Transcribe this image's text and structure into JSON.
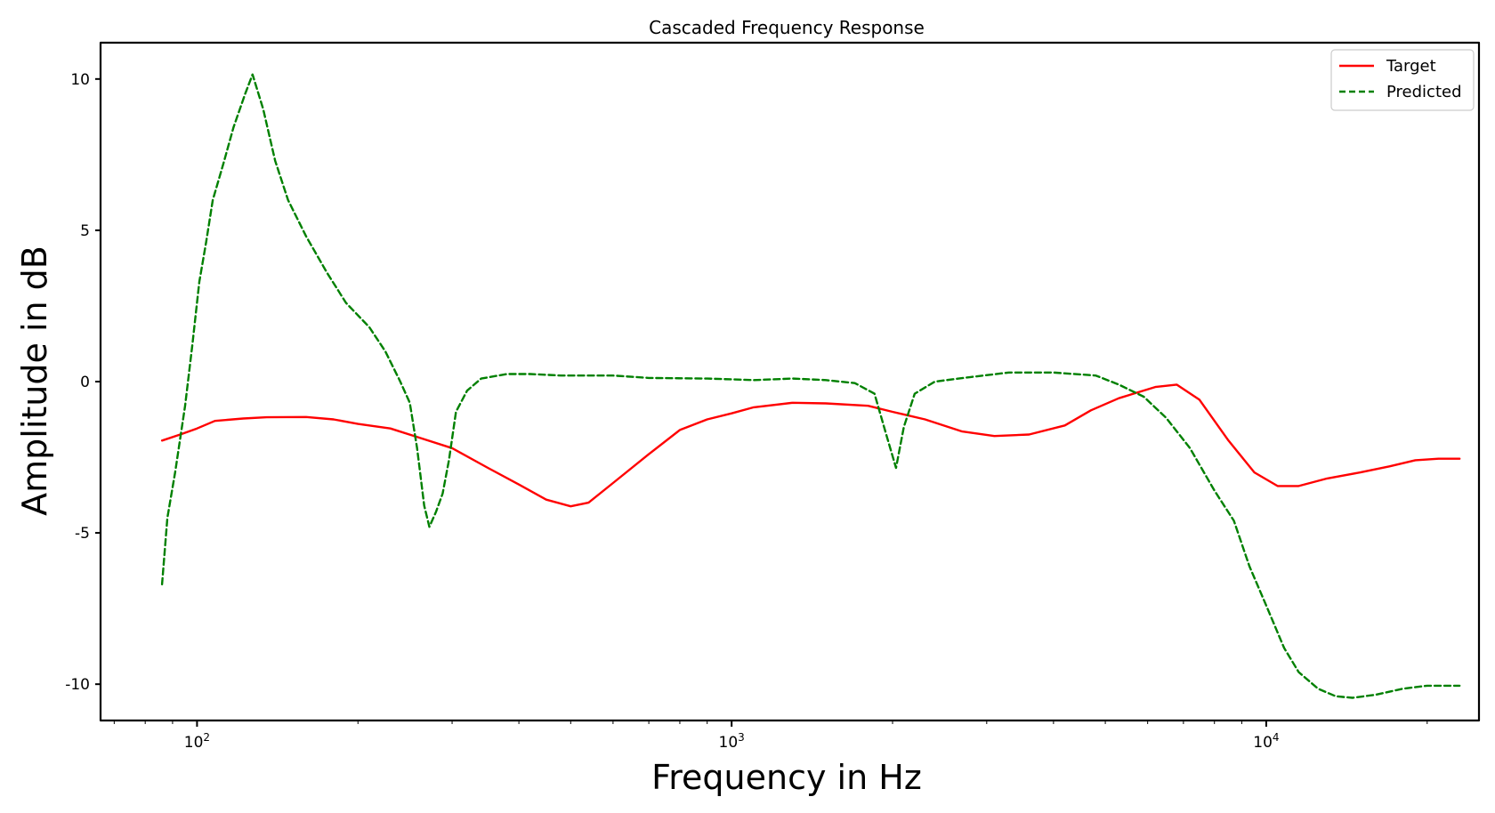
{
  "chart_data": {
    "type": "line",
    "title": "Cascaded Frequency Response",
    "xlabel": "Frequency in Hz",
    "ylabel": "Amplitude in dB",
    "x_scale": "log",
    "xlim": [
      66,
      25000
    ],
    "ylim": [
      -11.2,
      11.2
    ],
    "x_ticks": [
      {
        "value": 100,
        "base": "10",
        "exp": "2"
      },
      {
        "value": 1000,
        "base": "10",
        "exp": "3"
      },
      {
        "value": 10000,
        "base": "10",
        "exp": "4"
      }
    ],
    "y_ticks": [
      {
        "value": 10,
        "label": "10"
      },
      {
        "value": 5,
        "label": "5"
      },
      {
        "value": 0,
        "label": "0"
      },
      {
        "value": -5,
        "label": "-5"
      },
      {
        "value": -10,
        "label": "-10"
      }
    ],
    "grid": false,
    "legend_position": "top-right",
    "series": [
      {
        "name": "Target",
        "color": "#ff0000",
        "style": "solid",
        "points": [
          [
            86,
            -1.95
          ],
          [
            93,
            -1.75
          ],
          [
            100,
            -1.55
          ],
          [
            108,
            -1.3
          ],
          [
            122,
            -1.22
          ],
          [
            135,
            -1.18
          ],
          [
            160,
            -1.17
          ],
          [
            180,
            -1.25
          ],
          [
            200,
            -1.4
          ],
          [
            230,
            -1.55
          ],
          [
            260,
            -1.85
          ],
          [
            300,
            -2.2
          ],
          [
            350,
            -2.85
          ],
          [
            400,
            -3.4
          ],
          [
            450,
            -3.9
          ],
          [
            500,
            -4.12
          ],
          [
            540,
            -4.0
          ],
          [
            600,
            -3.35
          ],
          [
            700,
            -2.4
          ],
          [
            800,
            -1.6
          ],
          [
            900,
            -1.25
          ],
          [
            1000,
            -1.05
          ],
          [
            1100,
            -0.85
          ],
          [
            1300,
            -0.7
          ],
          [
            1500,
            -0.72
          ],
          [
            1800,
            -0.8
          ],
          [
            2000,
            -1.0
          ],
          [
            2300,
            -1.25
          ],
          [
            2700,
            -1.65
          ],
          [
            3100,
            -1.8
          ],
          [
            3600,
            -1.75
          ],
          [
            4200,
            -1.45
          ],
          [
            4700,
            -0.95
          ],
          [
            5300,
            -0.55
          ],
          [
            6200,
            -0.18
          ],
          [
            6800,
            -0.1
          ],
          [
            7500,
            -0.6
          ],
          [
            8500,
            -1.95
          ],
          [
            9500,
            -3.0
          ],
          [
            10500,
            -3.45
          ],
          [
            11500,
            -3.45
          ],
          [
            13000,
            -3.2
          ],
          [
            15000,
            -3.0
          ],
          [
            17000,
            -2.8
          ],
          [
            19000,
            -2.6
          ],
          [
            21000,
            -2.55
          ],
          [
            23000,
            -2.55
          ]
        ]
      },
      {
        "name": "Predicted",
        "color": "#008000",
        "style": "dashed",
        "points": [
          [
            86,
            -6.7
          ],
          [
            88,
            -4.5
          ],
          [
            91,
            -3.0
          ],
          [
            95,
            -0.8
          ],
          [
            98,
            1.2
          ],
          [
            101,
            3.3
          ],
          [
            104,
            4.6
          ],
          [
            107,
            6.0
          ],
          [
            112,
            7.2
          ],
          [
            117,
            8.4
          ],
          [
            123,
            9.5
          ],
          [
            127,
            10.15
          ],
          [
            133,
            9.0
          ],
          [
            140,
            7.3
          ],
          [
            148,
            6.0
          ],
          [
            160,
            4.8
          ],
          [
            175,
            3.6
          ],
          [
            190,
            2.6
          ],
          [
            210,
            1.8
          ],
          [
            225,
            1.0
          ],
          [
            240,
            0.0
          ],
          [
            250,
            -0.7
          ],
          [
            258,
            -2.2
          ],
          [
            266,
            -4.1
          ],
          [
            272,
            -4.8
          ],
          [
            280,
            -4.3
          ],
          [
            288,
            -3.7
          ],
          [
            296,
            -2.6
          ],
          [
            305,
            -1.0
          ],
          [
            320,
            -0.3
          ],
          [
            340,
            0.1
          ],
          [
            380,
            0.25
          ],
          [
            420,
            0.25
          ],
          [
            480,
            0.2
          ],
          [
            600,
            0.2
          ],
          [
            700,
            0.12
          ],
          [
            900,
            0.1
          ],
          [
            1100,
            0.05
          ],
          [
            1300,
            0.1
          ],
          [
            1500,
            0.05
          ],
          [
            1700,
            -0.05
          ],
          [
            1850,
            -0.4
          ],
          [
            1950,
            -1.8
          ],
          [
            2030,
            -2.85
          ],
          [
            2100,
            -1.5
          ],
          [
            2200,
            -0.4
          ],
          [
            2400,
            0.0
          ],
          [
            2800,
            0.15
          ],
          [
            3300,
            0.3
          ],
          [
            4000,
            0.3
          ],
          [
            4800,
            0.2
          ],
          [
            5300,
            -0.1
          ],
          [
            5900,
            -0.5
          ],
          [
            6500,
            -1.2
          ],
          [
            7200,
            -2.2
          ],
          [
            8000,
            -3.6
          ],
          [
            8700,
            -4.6
          ],
          [
            9300,
            -6.1
          ],
          [
            10000,
            -7.4
          ],
          [
            10800,
            -8.8
          ],
          [
            11500,
            -9.6
          ],
          [
            12500,
            -10.15
          ],
          [
            13500,
            -10.4
          ],
          [
            14500,
            -10.45
          ],
          [
            16000,
            -10.35
          ],
          [
            18000,
            -10.15
          ],
          [
            20000,
            -10.05
          ],
          [
            23000,
            -10.05
          ]
        ]
      }
    ]
  }
}
